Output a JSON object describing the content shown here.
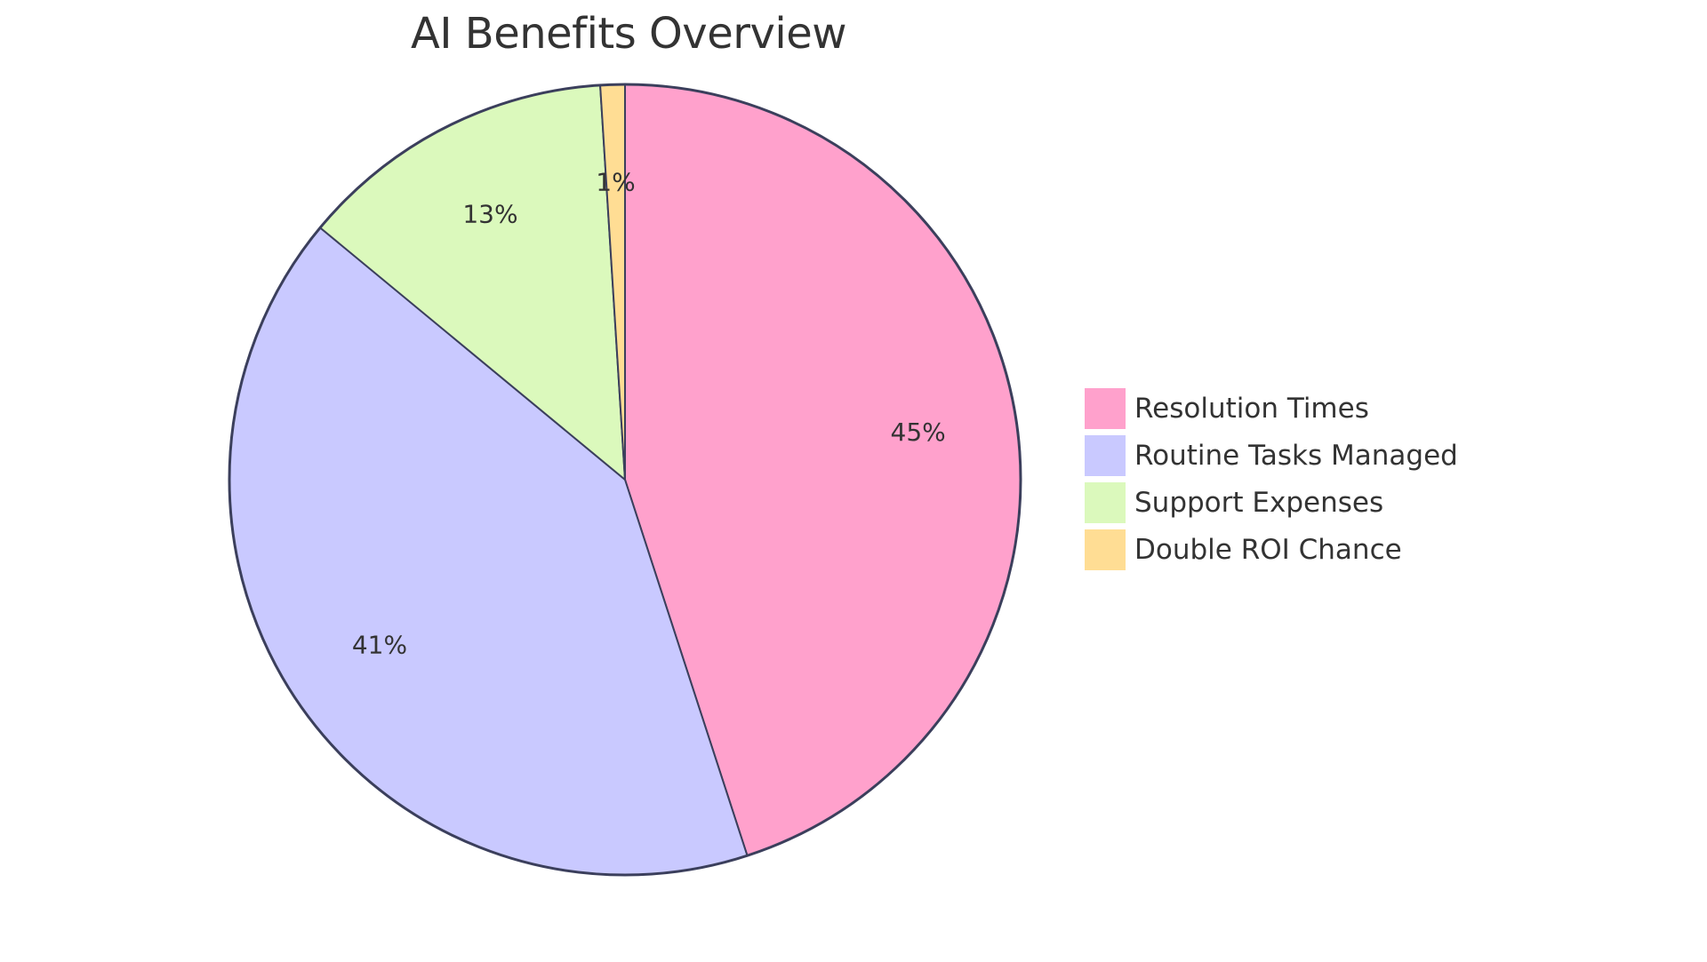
{
  "chart_data": {
    "type": "pie",
    "title": "AI Benefits Overview",
    "categories": [
      "Resolution Times",
      "Routine Tasks Managed",
      "Support Expenses",
      "Double ROI Chance"
    ],
    "values": [
      45,
      41,
      13,
      1
    ],
    "labels": [
      "45%",
      "41%",
      "13%",
      "1%"
    ],
    "colors": [
      "#ffa1cc",
      "#c9c9ff",
      "#dbf9bc",
      "#ffdd94"
    ],
    "stroke_color": "#3b3f5c",
    "legend_position": "right",
    "start_angle_deg": 0,
    "direction": "clockwise"
  },
  "title": "AI Benefits Overview",
  "legend": {
    "items": [
      {
        "label": "Resolution Times",
        "color": "#ffa1cc"
      },
      {
        "label": "Routine Tasks Managed",
        "color": "#c9c9ff"
      },
      {
        "label": "Support Expenses",
        "color": "#dbf9bc"
      },
      {
        "label": "Double ROI Chance",
        "color": "#ffdd94"
      }
    ]
  }
}
